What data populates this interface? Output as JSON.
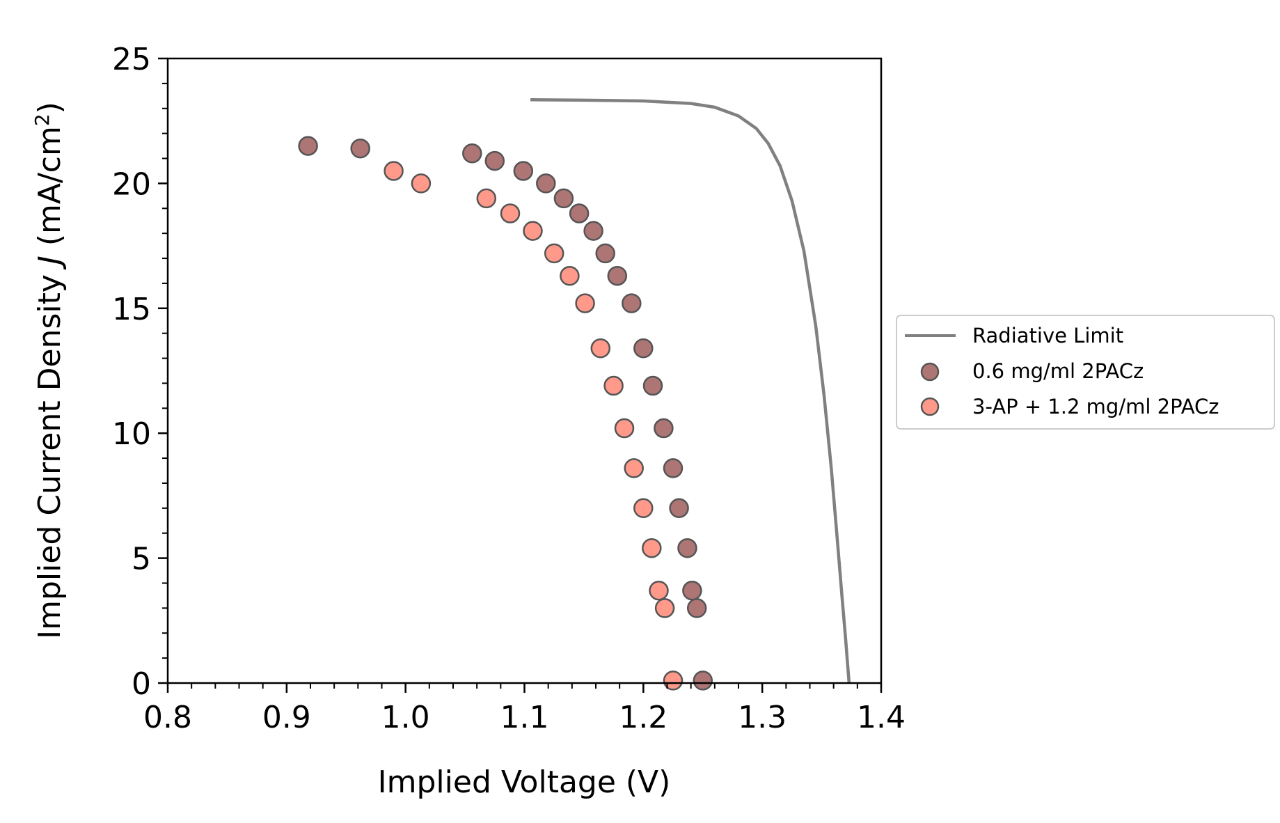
{
  "chart_data": {
    "type": "scatter",
    "xlabel": "Implied Voltage (V)",
    "ylabel": {
      "prefix": "Implied Current Density ",
      "symbol": "J",
      "unit_open": " (mA/cm",
      "unit_sup": "2",
      "unit_close": ")"
    },
    "xlim": [
      0.8,
      1.4
    ],
    "ylim": [
      0,
      25
    ],
    "xticks": [
      "0.8",
      "0.9",
      "1.0",
      "1.1",
      "1.2",
      "1.3",
      "1.4"
    ],
    "yticks": [
      "0",
      "5",
      "10",
      "15",
      "20",
      "25"
    ],
    "grid": false,
    "legend_position": "right",
    "series": [
      {
        "name": "Radiative Limit",
        "kind": "line",
        "color": "#808080",
        "points": [
          [
            1.105,
            23.35
          ],
          [
            1.15,
            23.33
          ],
          [
            1.2,
            23.3
          ],
          [
            1.24,
            23.2
          ],
          [
            1.26,
            23.05
          ],
          [
            1.28,
            22.7
          ],
          [
            1.295,
            22.2
          ],
          [
            1.305,
            21.6
          ],
          [
            1.315,
            20.7
          ],
          [
            1.325,
            19.3
          ],
          [
            1.335,
            17.3
          ],
          [
            1.345,
            14.3
          ],
          [
            1.352,
            11.5
          ],
          [
            1.358,
            8.6
          ],
          [
            1.363,
            5.8
          ],
          [
            1.367,
            3.5
          ],
          [
            1.37,
            1.8
          ],
          [
            1.373,
            0.0
          ]
        ]
      },
      {
        "name": "0.6 mg/ml 2PACz",
        "kind": "scatter",
        "color": "#8b3a3a",
        "points": [
          [
            0.918,
            21.5
          ],
          [
            0.962,
            21.4
          ],
          [
            1.056,
            21.2
          ],
          [
            1.075,
            20.9
          ],
          [
            1.099,
            20.5
          ],
          [
            1.118,
            20.0
          ],
          [
            1.133,
            19.4
          ],
          [
            1.146,
            18.8
          ],
          [
            1.158,
            18.1
          ],
          [
            1.168,
            17.2
          ],
          [
            1.178,
            16.3
          ],
          [
            1.19,
            15.2
          ],
          [
            1.2,
            13.4
          ],
          [
            1.208,
            11.9
          ],
          [
            1.217,
            10.2
          ],
          [
            1.225,
            8.6
          ],
          [
            1.23,
            7.0
          ],
          [
            1.237,
            5.4
          ],
          [
            1.241,
            3.7
          ],
          [
            1.245,
            3.0
          ],
          [
            1.25,
            0.1
          ]
        ]
      },
      {
        "name": "3-AP + 1.2 mg/ml 2PACz",
        "kind": "scatter",
        "color": "#ff6f5a",
        "points": [
          [
            0.99,
            20.5
          ],
          [
            1.013,
            20.0
          ],
          [
            1.068,
            19.4
          ],
          [
            1.088,
            18.8
          ],
          [
            1.107,
            18.1
          ],
          [
            1.125,
            17.2
          ],
          [
            1.138,
            16.3
          ],
          [
            1.151,
            15.2
          ],
          [
            1.164,
            13.4
          ],
          [
            1.175,
            11.9
          ],
          [
            1.184,
            10.2
          ],
          [
            1.192,
            8.6
          ],
          [
            1.2,
            7.0
          ],
          [
            1.207,
            5.4
          ],
          [
            1.213,
            3.7
          ],
          [
            1.218,
            3.0
          ],
          [
            1.225,
            0.1
          ]
        ]
      }
    ]
  }
}
